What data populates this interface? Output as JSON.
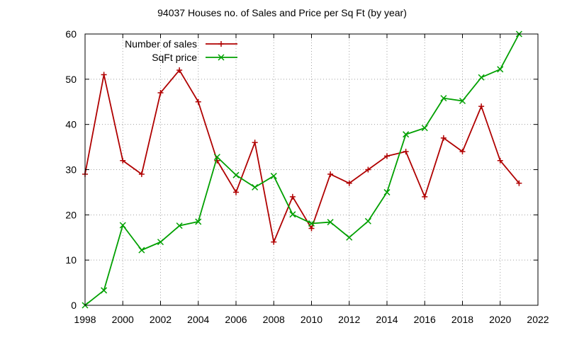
{
  "chart_data": {
    "type": "line",
    "title": "94037 Houses no. of Sales and Price per Sq Ft (by year)",
    "xlabel": "",
    "ylabel": "",
    "xlim": [
      1998,
      2022
    ],
    "ylim": [
      0,
      60
    ],
    "x_ticks": [
      1998,
      2000,
      2002,
      2004,
      2006,
      2008,
      2010,
      2012,
      2014,
      2016,
      2018,
      2020,
      2022
    ],
    "y_ticks": [
      0,
      10,
      20,
      30,
      40,
      50,
      60
    ],
    "grid": true,
    "legend_position": "top-left",
    "x": [
      1998,
      1999,
      2000,
      2001,
      2002,
      2003,
      2004,
      2005,
      2006,
      2007,
      2008,
      2009,
      2010,
      2011,
      2012,
      2013,
      2014,
      2015,
      2016,
      2017,
      2018,
      2019,
      2020,
      2021
    ],
    "series": [
      {
        "name": "Number of sales",
        "color": "#b00000",
        "marker": "plus",
        "values": [
          29,
          51,
          32,
          29,
          47,
          52,
          45,
          32,
          25,
          36,
          14,
          24,
          17,
          29,
          27,
          30,
          33,
          34,
          24,
          37,
          34,
          44,
          32,
          27
        ]
      },
      {
        "name": "SqFt price",
        "color": "#00a000",
        "marker": "cross",
        "values": [
          0,
          3.3,
          17.7,
          12.2,
          14,
          17.6,
          18.5,
          32.8,
          28.8,
          26.1,
          28.6,
          20.1,
          18.1,
          18.4,
          15,
          18.6,
          25,
          37.8,
          39.2,
          45.8,
          45.2,
          50.4,
          52.2,
          60
        ]
      }
    ]
  }
}
